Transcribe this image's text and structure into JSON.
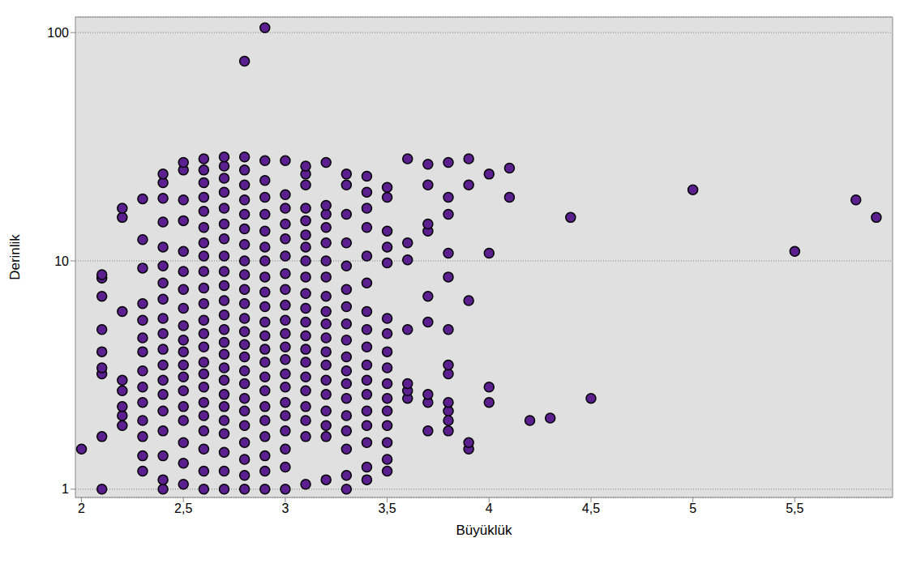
{
  "chart_data": {
    "type": "scatter",
    "x_label": "Büyüklük",
    "y_label": "Derinlik",
    "log": "y",
    "grid": true,
    "color": "#5b1f8f",
    "marker": "circle",
    "xlim": [
      1.97,
      5.98
    ],
    "xticks": [
      2,
      {
        "value": 2.5,
        "label": "2,5"
      },
      3,
      {
        "value": 3.5,
        "label": "3,5"
      },
      4,
      {
        "value": 4.5,
        "label": "4,5"
      },
      5,
      {
        "value": 5.5,
        "label": "5,5"
      }
    ],
    "ylim": [
      0.92,
      117
    ],
    "yticks": [
      1,
      10,
      100
    ],
    "x": [
      2.0,
      2.1,
      2.1,
      2.1,
      2.1,
      2.1,
      2.1,
      2.1,
      2.1,
      2.1,
      2.2,
      2.2,
      2.2,
      2.2,
      2.2,
      2.2,
      2.2,
      2.2,
      2.3,
      2.3,
      2.3,
      2.3,
      2.3,
      2.3,
      2.3,
      2.3,
      2.3,
      2.3,
      2.3,
      2.3,
      2.3,
      2.3,
      2.4,
      2.4,
      2.4,
      2.4,
      2.4,
      2.4,
      2.4,
      2.4,
      2.4,
      2.4,
      2.4,
      2.4,
      2.4,
      2.4,
      2.4,
      2.4,
      2.4,
      2.4,
      2.4,
      2.5,
      2.5,
      2.5,
      2.5,
      2.5,
      2.5,
      2.5,
      2.5,
      2.5,
      2.5,
      2.5,
      2.5,
      2.5,
      2.5,
      2.5,
      2.5,
      2.5,
      2.5,
      2.5,
      2.6,
      2.6,
      2.6,
      2.6,
      2.6,
      2.6,
      2.6,
      2.6,
      2.6,
      2.6,
      2.6,
      2.6,
      2.6,
      2.6,
      2.6,
      2.6,
      2.6,
      2.6,
      2.6,
      2.6,
      2.6,
      2.6,
      2.6,
      2.7,
      2.7,
      2.7,
      2.7,
      2.7,
      2.7,
      2.7,
      2.7,
      2.7,
      2.7,
      2.7,
      2.7,
      2.7,
      2.7,
      2.7,
      2.7,
      2.7,
      2.7,
      2.7,
      2.7,
      2.7,
      2.7,
      2.7,
      2.7,
      2.8,
      2.8,
      2.8,
      2.8,
      2.8,
      2.8,
      2.8,
      2.8,
      2.8,
      2.8,
      2.8,
      2.8,
      2.8,
      2.8,
      2.8,
      2.8,
      2.8,
      2.8,
      2.8,
      2.8,
      2.8,
      2.8,
      2.8,
      2.8,
      2.8,
      2.9,
      2.9,
      2.9,
      2.9,
      2.9,
      2.9,
      2.9,
      2.9,
      2.9,
      2.9,
      2.9,
      2.9,
      2.9,
      2.9,
      2.9,
      2.9,
      2.9,
      2.9,
      2.9,
      2.9,
      2.9,
      2.9,
      2.9,
      3.0,
      3.0,
      3.0,
      3.0,
      3.0,
      3.0,
      3.0,
      3.0,
      3.0,
      3.0,
      3.0,
      3.0,
      3.0,
      3.0,
      3.0,
      3.0,
      3.0,
      3.0,
      3.0,
      3.0,
      3.0,
      3.1,
      3.1,
      3.1,
      3.1,
      3.1,
      3.1,
      3.1,
      3.1,
      3.1,
      3.1,
      3.1,
      3.1,
      3.1,
      3.1,
      3.1,
      3.1,
      3.1,
      3.1,
      3.1,
      3.1,
      3.1,
      3.2,
      3.2,
      3.2,
      3.2,
      3.2,
      3.2,
      3.2,
      3.2,
      3.2,
      3.2,
      3.2,
      3.2,
      3.2,
      3.2,
      3.2,
      3.2,
      3.2,
      3.2,
      3.2,
      3.3,
      3.3,
      3.3,
      3.3,
      3.3,
      3.3,
      3.3,
      3.3,
      3.3,
      3.3,
      3.3,
      3.3,
      3.3,
      3.3,
      3.3,
      3.3,
      3.3,
      3.3,
      3.4,
      3.4,
      3.4,
      3.4,
      3.4,
      3.4,
      3.4,
      3.4,
      3.4,
      3.4,
      3.4,
      3.4,
      3.4,
      3.4,
      3.4,
      3.4,
      3.4,
      3.5,
      3.5,
      3.5,
      3.5,
      3.5,
      3.5,
      3.5,
      3.5,
      3.5,
      3.5,
      3.5,
      3.5,
      3.5,
      3.5,
      3.5,
      3.5,
      3.6,
      3.6,
      3.6,
      3.6,
      3.6,
      3.6,
      3.6,
      3.7,
      3.7,
      3.7,
      3.7,
      3.7,
      3.7,
      3.7,
      3.7,
      3.7,
      3.8,
      3.8,
      3.8,
      3.8,
      3.8,
      3.8,
      3.8,
      3.8,
      3.8,
      3.8,
      3.8,
      3.8,
      3.9,
      3.9,
      3.9,
      3.9,
      3.9,
      4.0,
      4.0,
      4.0,
      4.0,
      4.1,
      4.1,
      4.2,
      4.3,
      4.4,
      4.5,
      5.0,
      5.5,
      5.8,
      5.9
    ],
    "values": [
      1.5,
      1.0,
      1.7,
      3.2,
      3.4,
      4.0,
      5.0,
      7.0,
      8.4,
      8.7,
      1.9,
      2.1,
      2.3,
      2.7,
      3.0,
      6.0,
      15.5,
      17.0,
      1.2,
      1.4,
      1.7,
      2.0,
      2.4,
      2.8,
      3.3,
      4.0,
      4.6,
      5.5,
      6.5,
      9.3,
      12.4,
      18.7,
      1.0,
      1.1,
      1.4,
      1.8,
      2.2,
      2.6,
      3.0,
      3.5,
      4.1,
      4.8,
      5.6,
      6.8,
      8.0,
      9.5,
      11.5,
      14.8,
      18.8,
      22.0,
      24.0,
      1.05,
      1.3,
      1.6,
      2.0,
      2.3,
      2.7,
      3.1,
      3.5,
      4.0,
      4.5,
      5.2,
      6.2,
      7.5,
      9.0,
      11.0,
      15.0,
      18.5,
      25.0,
      27.0,
      1.0,
      1.2,
      1.5,
      1.8,
      2.1,
      2.4,
      2.8,
      3.2,
      3.6,
      4.2,
      4.8,
      5.5,
      6.5,
      7.6,
      9.0,
      10.5,
      12.0,
      14.0,
      16.5,
      19.0,
      22.0,
      25.0,
      28.0,
      1.0,
      1.2,
      1.45,
      1.75,
      2.0,
      2.3,
      2.6,
      3.0,
      3.4,
      3.9,
      4.4,
      5.0,
      5.8,
      6.7,
      7.8,
      9.0,
      10.5,
      12.5,
      14.5,
      17.0,
      20.0,
      23.0,
      26.0,
      28.5,
      1.0,
      1.15,
      1.35,
      1.6,
      1.9,
      2.2,
      2.5,
      2.9,
      3.3,
      3.8,
      4.3,
      4.9,
      5.6,
      6.5,
      7.5,
      8.7,
      10.0,
      11.8,
      13.8,
      16.0,
      18.5,
      21.5,
      25.0,
      28.5,
      75.0,
      1.0,
      1.2,
      1.4,
      1.7,
      2.0,
      2.3,
      2.7,
      3.1,
      3.6,
      4.1,
      4.7,
      5.4,
      6.3,
      7.3,
      8.5,
      10.0,
      11.5,
      13.5,
      16.0,
      19.0,
      22.5,
      27.5,
      105.0,
      1.0,
      1.25,
      1.5,
      1.8,
      2.1,
      2.4,
      2.8,
      3.2,
      3.7,
      4.2,
      4.8,
      5.5,
      6.4,
      7.5,
      8.8,
      10.5,
      12.5,
      14.5,
      17.0,
      19.5,
      27.5,
      1.05,
      1.7,
      2.0,
      2.3,
      2.7,
      3.1,
      3.6,
      4.1,
      4.7,
      5.4,
      6.2,
      7.2,
      8.5,
      10.0,
      11.5,
      13.0,
      15.0,
      17.0,
      21.5,
      24.0,
      26.0,
      1.1,
      1.7,
      1.9,
      2.2,
      2.6,
      3.0,
      3.5,
      4.0,
      4.6,
      5.3,
      6.0,
      7.0,
      8.5,
      10.0,
      12.0,
      14.0,
      16.0,
      17.5,
      27.0,
      1.0,
      1.15,
      1.5,
      1.8,
      2.1,
      2.5,
      2.9,
      3.3,
      3.8,
      4.5,
      5.3,
      6.3,
      7.5,
      9.5,
      12.0,
      16.0,
      21.5,
      24.0,
      1.1,
      1.25,
      1.6,
      1.9,
      2.2,
      2.6,
      3.0,
      3.5,
      4.2,
      5.0,
      6.0,
      8.0,
      10.5,
      14.0,
      17.0,
      20.0,
      23.5,
      1.2,
      1.35,
      1.6,
      1.9,
      2.2,
      2.5,
      2.9,
      3.4,
      4.0,
      4.8,
      5.6,
      9.8,
      11.5,
      13.5,
      19.0,
      21.0,
      2.5,
      2.7,
      2.9,
      5.0,
      10.1,
      12.0,
      28.0,
      1.8,
      2.4,
      2.6,
      5.4,
      7.0,
      13.5,
      14.5,
      21.5,
      26.5,
      1.8,
      2.0,
      2.2,
      2.4,
      3.2,
      3.5,
      5.0,
      8.5,
      10.8,
      16.0,
      19.0,
      27.0,
      1.5,
      1.6,
      6.7,
      21.5,
      28.0,
      2.4,
      2.8,
      10.8,
      24.0,
      19.0,
      25.5,
      2.0,
      2.05,
      15.5,
      2.5,
      20.5,
      11.0,
      18.5,
      15.5
    ]
  }
}
